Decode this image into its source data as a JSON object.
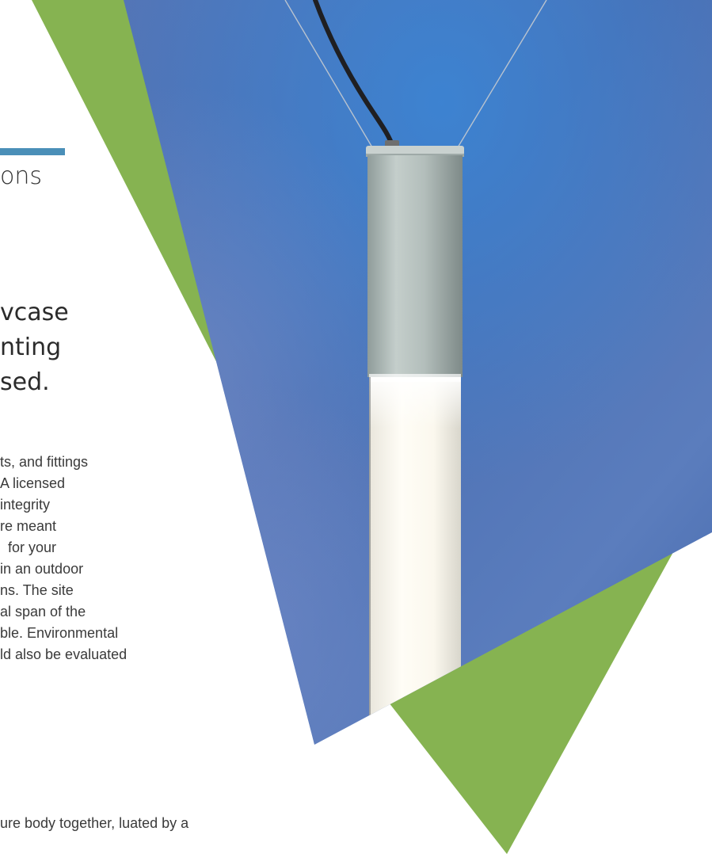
{
  "section": {
    "label": "ons"
  },
  "headline": {
    "lines": [
      "vcase",
      "nting",
      "sed."
    ]
  },
  "body": {
    "lines": [
      "ts, and fittings",
      "A licensed",
      "integrity",
      "re meant",
      "  for your",
      "in an outdoor",
      "ns. The site",
      "al span of the",
      "ble. Environmental",
      "ld also be evaluated"
    ],
    "second_lines": [
      "ure body together,",
      "luated by a"
    ]
  },
  "photo": {
    "subject": "pendant-tube-light"
  },
  "colors": {
    "accent_blue": "#4a8fb8",
    "brand_green": "#86b351",
    "sky_blue": "#4f74b8",
    "text": "#333333"
  }
}
